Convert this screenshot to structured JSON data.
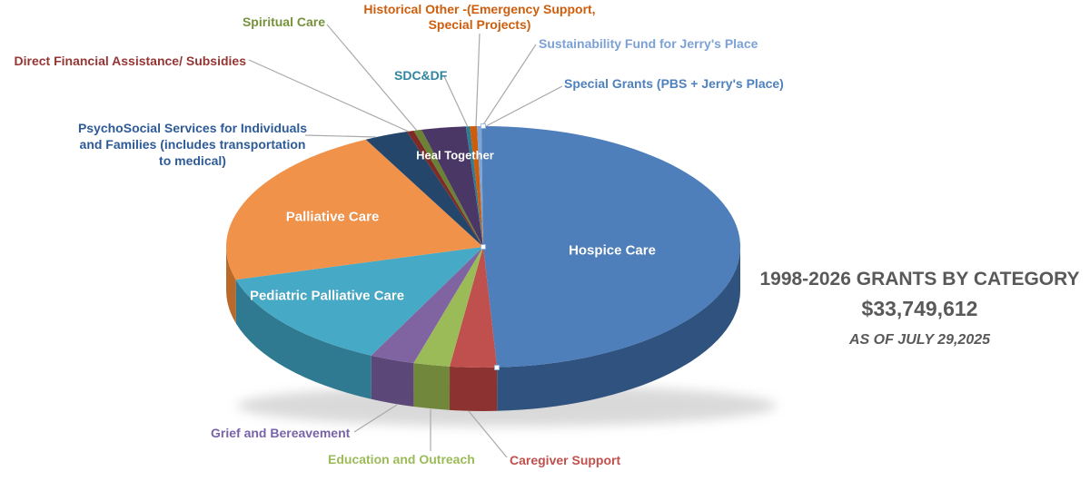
{
  "page": {
    "background": "#FFFFFF"
  },
  "title_block": {
    "line1": "1998-2026 GRANTS BY CATEGORY",
    "line2": "$33,749,612",
    "line3": "AS OF JULY 29,2025",
    "color": "#595959"
  },
  "chart_data": {
    "type": "pie",
    "style": "3d",
    "title": "1998-2026 GRANTS BY CATEGORY",
    "total": "$33,749,612",
    "total_value": 33749612,
    "as_of_label": "AS OF JULY 29,2025",
    "start_angle_deg": 0,
    "direction": "clockwise",
    "legend": "none",
    "leader_line_color": "#A9A9A9",
    "note": "Slice shares estimated from on-screen slice angles; only the grand total dollar value is printed on the chart.",
    "slices": [
      {
        "name": "Hospice Care",
        "share_pct_est": 49.14,
        "color": "#4E7FBB",
        "side_color": "#2F527E",
        "label_color": "#FFFFFF",
        "label_inside": true
      },
      {
        "name": "Caregiver Support",
        "share_pct_est": 2.94,
        "color": "#C0504D",
        "side_color": "#8C3230",
        "label_color": "#C0504D",
        "label_inside": false
      },
      {
        "name": "Education and Outreach",
        "share_pct_est": 2.28,
        "color": "#9BBB59",
        "side_color": "#71883C",
        "label_color": "#9BBB59",
        "label_inside": false
      },
      {
        "name": "Grief and Bereavement",
        "share_pct_est": 2.81,
        "color": "#8064A2",
        "side_color": "#5C4878",
        "label_color": "#7864A8",
        "label_inside": false
      },
      {
        "name": "Pediatric Palliative Care",
        "share_pct_est": 13.44,
        "color": "#46A9C5",
        "side_color": "#2F7A90",
        "label_color": "#FFFFFF",
        "label_inside": true
      },
      {
        "name": "Palliative Care",
        "share_pct_est": 21.83,
        "color": "#F09249",
        "side_color": "#B96A2B",
        "label_color": "#FFFFFF",
        "label_inside": true
      },
      {
        "name": "PsychoSocial Services for Individuals and Families (includes transportation to medical)",
        "label_lines": [
          "PsychoSocial Services for Individuals",
          "and Families (includes transportation",
          "to medical)"
        ],
        "share_pct_est": 2.75,
        "color": "#24466B",
        "side_color": "#16304C",
        "label_color": "#2E5B97",
        "label_inside": false
      },
      {
        "name": "Direct Financial Assistance/ Subsidies",
        "share_pct_est": 0.44,
        "color": "#7E2B28",
        "side_color": "#5A1E1C",
        "label_color": "#943634",
        "label_inside": false
      },
      {
        "name": "Spiritual Care",
        "share_pct_est": 0.5,
        "color": "#6B8236",
        "side_color": "#4C5E25",
        "label_color": "#76923C",
        "label_inside": false
      },
      {
        "name": "Heal Together",
        "share_pct_est": 2.78,
        "color": "#4A3766",
        "side_color": "#352748",
        "label_color": "#FFFFFF",
        "label_inside": true
      },
      {
        "name": "SDC&DF",
        "share_pct_est": 0.25,
        "color": "#2F7C91",
        "side_color": "#215866",
        "label_color": "#31859C",
        "label_inside": false
      },
      {
        "name": "Historical Other -(Emergency Support, Special Projects)",
        "label_lines": [
          "Historical Other -(Emergency Support,",
          "Special Projects)"
        ],
        "share_pct_est": 0.44,
        "color": "#CB5D0D",
        "side_color": "#944309",
        "label_color": "#CE5E0E",
        "label_inside": false
      },
      {
        "name": "Sustainability Fund for Jerry's Place",
        "share_pct_est": 0.28,
        "color": "#7CA4D4",
        "side_color": "#56779C",
        "label_color": "#7CA1D6",
        "label_inside": false
      },
      {
        "name": "Special Grants (PBS + Jerry's Place)",
        "share_pct_est": 0.11,
        "color": "#4E7FBB",
        "side_color": "#2F527E",
        "label_color": "#4F81BD",
        "label_inside": false
      }
    ]
  }
}
